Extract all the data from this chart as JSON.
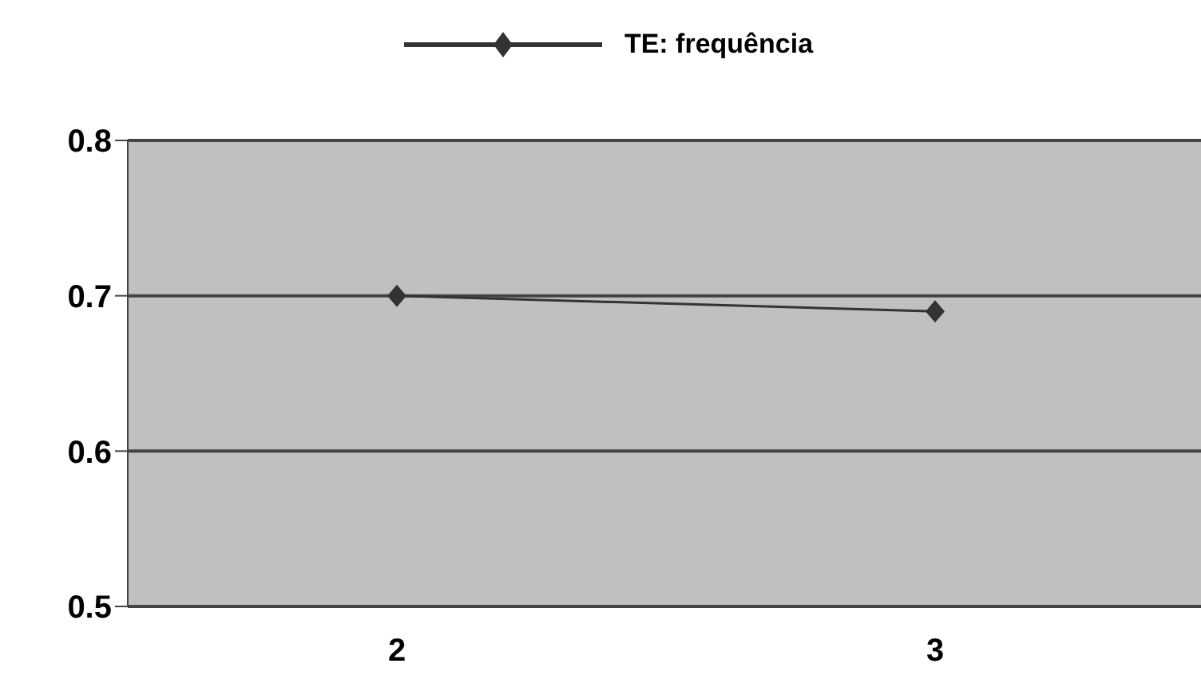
{
  "chart_data": {
    "type": "line",
    "categories": [
      "2",
      "3"
    ],
    "series": [
      {
        "name": "TE: frequência",
        "color": "#333333",
        "values": [
          0.7,
          0.69
        ]
      }
    ],
    "ylim": [
      0.5,
      0.8
    ],
    "yticks": [
      0.5,
      0.6,
      0.7,
      0.8
    ],
    "grid": "y",
    "legend": "top",
    "marker": "diamond",
    "line_style": "solid"
  }
}
